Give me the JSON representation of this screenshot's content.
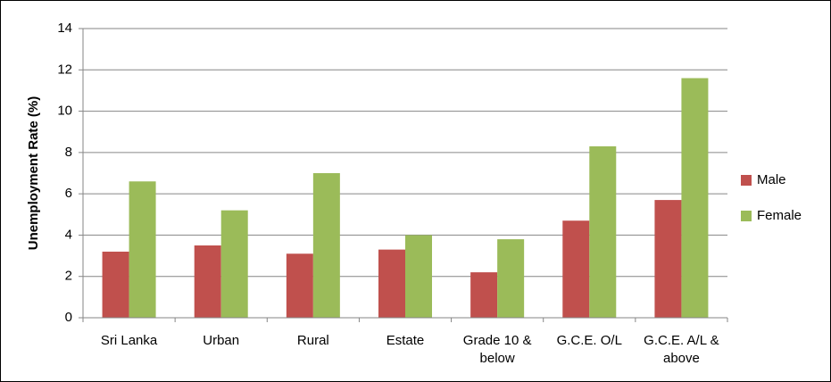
{
  "chart_data": {
    "type": "bar",
    "y_label": "Unemployment Rate (%)",
    "categories": [
      "Sri Lanka",
      "Urban",
      "Rural",
      "Estate",
      "Grade 10 & below",
      "G.C.E. O/L",
      "G.C.E. A/L & above"
    ],
    "series": [
      {
        "name": "Male",
        "color": "#c0504d",
        "values": [
          3.2,
          3.5,
          3.1,
          3.3,
          2.2,
          4.7,
          5.7
        ]
      },
      {
        "name": "Female",
        "color": "#9bbb59",
        "values": [
          6.6,
          5.2,
          7.0,
          4.0,
          3.8,
          8.3,
          11.6
        ]
      }
    ],
    "ylim": [
      0,
      14
    ],
    "yticks": [
      0,
      2,
      4,
      6,
      8,
      10,
      12,
      14
    ],
    "grid": true,
    "legend": "right"
  }
}
